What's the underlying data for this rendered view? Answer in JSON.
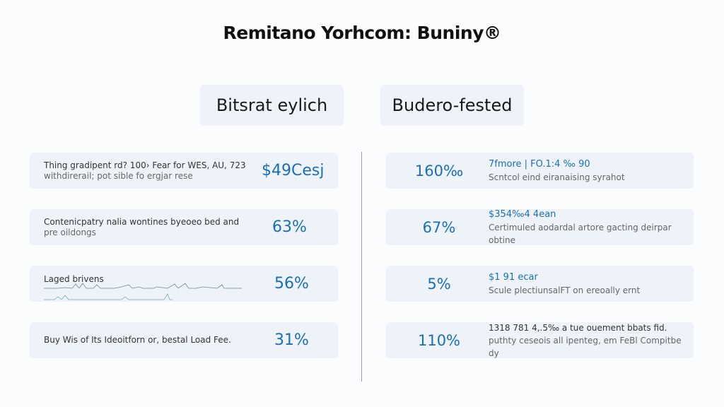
{
  "title": "Remitano Yorhcom: Buniny®",
  "columns": [
    {
      "heading": "Bitsrat eylich"
    },
    {
      "heading": "Budero-fested"
    }
  ],
  "left_rows": [
    {
      "text": "Thing gradipent rd? 100› Fear for WES, AU, 723",
      "sub": "withdirerail; pot sible fo ergjar rese",
      "value": "$49Cesj"
    },
    {
      "text": "Contenicpatry nalia wontines byeoeo bed and",
      "sub": "pre oildongs",
      "value": "63%"
    },
    {
      "text": "Laged brivens",
      "sub": "",
      "value": "56%"
    },
    {
      "text": "Buy Wis of Its Ideoitforn or, bestal Load Fee.",
      "sub": "",
      "value": "31%"
    }
  ],
  "right_rows": [
    {
      "value": "160‰",
      "head": "7fmore | FO.1:4 ‰ 90",
      "sub": "Scntcol eind eiranaising syrahot"
    },
    {
      "value": "67%",
      "head": "$354‰4 4ean",
      "sub": "Certimuled aodardal artore gacting deirpar obtine"
    },
    {
      "value": "5%",
      "head": "$1 91 ecar",
      "sub": "Scule plectiunsalFT on ereoally ernt"
    },
    {
      "value": "110%",
      "head": "1318 781 4,.5‰ a tue ouement bbats fid.",
      "sub": "puthty ceseois all ipenteg, em FeBl Compitbe dy"
    }
  ],
  "colors": {
    "accent": "#1a6fb8",
    "card": "#eef3f9",
    "background": "#fbfcfe"
  }
}
